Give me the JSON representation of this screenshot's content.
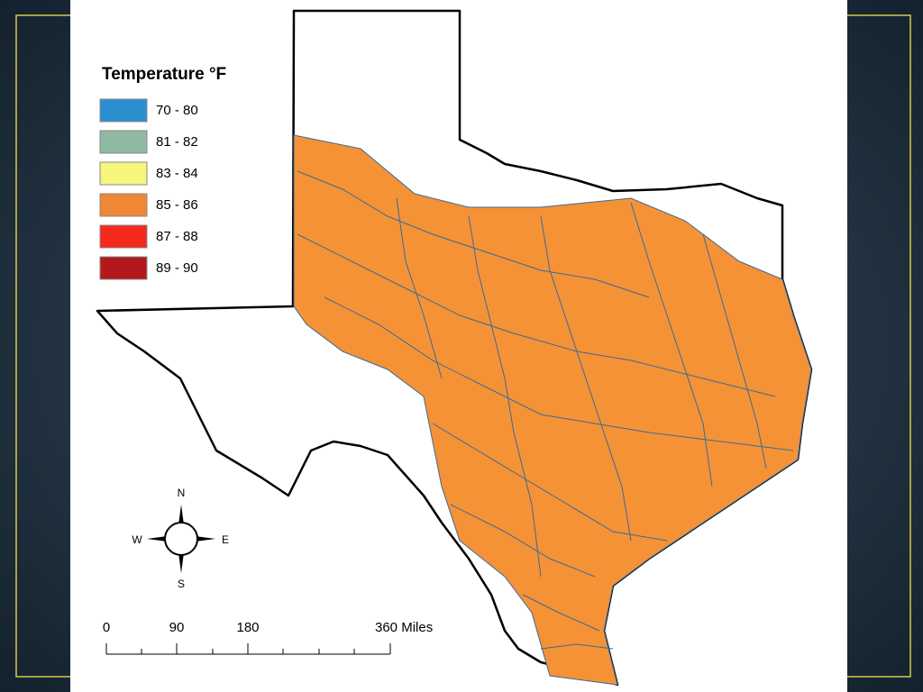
{
  "legend": {
    "title": "Temperature °F",
    "items": [
      {
        "label": "70 - 80",
        "color": "#2b8fcf"
      },
      {
        "label": "81 - 82",
        "color": "#8fb9a2"
      },
      {
        "label": "83 - 84",
        "color": "#f6f57e"
      },
      {
        "label": "85 - 86",
        "color": "#f08736"
      },
      {
        "label": "87 - 88",
        "color": "#f42a1c"
      },
      {
        "label": "89 - 90",
        "color": "#b3191c"
      }
    ]
  },
  "compass": {
    "north": "N",
    "south": "S",
    "east": "E",
    "west": "W"
  },
  "scale_bar": {
    "labels": [
      "0",
      "90",
      "180",
      "360 Miles"
    ]
  }
}
